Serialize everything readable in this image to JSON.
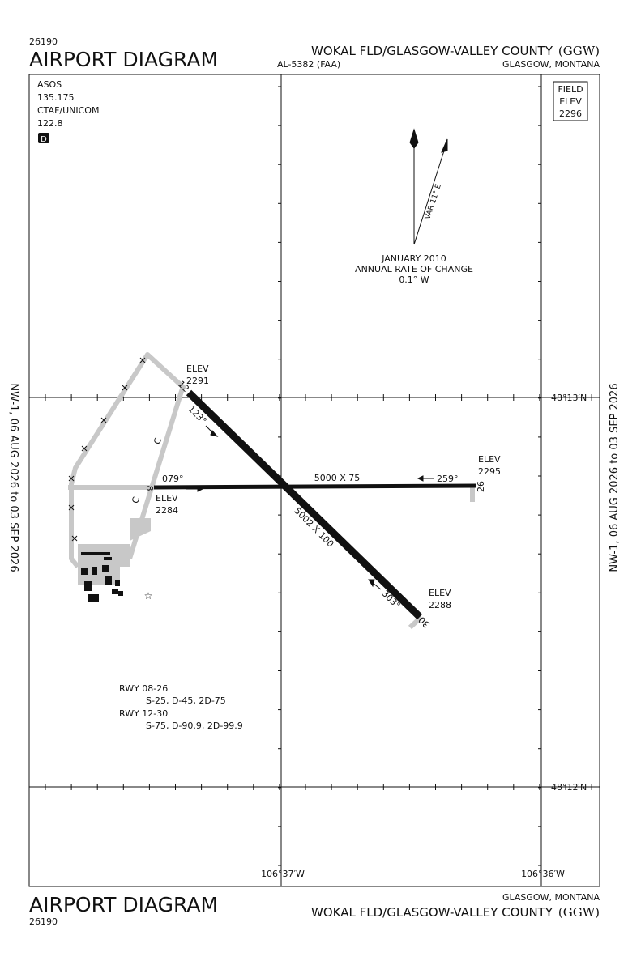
{
  "header": {
    "number": "26190",
    "title": "AIRPORT DIAGRAM",
    "airport": "WOKAL FLD/GLASGOW-VALLEY COUNTY",
    "ident": "(GGW)",
    "procedure": "AL-5382 (FAA)",
    "location": "GLASGOW, MONTANA"
  },
  "footer": {
    "title": "AIRPORT DIAGRAM",
    "number": "26190",
    "location": "GLASGOW, MONTANA",
    "airport": "WOKAL FLD/GLASGOW-VALLEY COUNTY",
    "ident": "(GGW)"
  },
  "side": {
    "left": "NW-1, 06 AUG 2026 to 03 SEP 2026",
    "right": "NW-1, 06 AUG 2026 to 03 SEP 2026"
  },
  "comms": {
    "asos": "ASOS",
    "asos_freq": "135.175",
    "ctaf": "CTAF/UNICOM",
    "ctaf_freq": "122.8",
    "badge": "D"
  },
  "field_elev": {
    "line1": "FIELD",
    "line2": "ELEV",
    "value": "2296"
  },
  "magvar": {
    "var": "VAR 11° E",
    "date": "JANUARY 2010",
    "rate_label": "ANNUAL RATE OF CHANGE",
    "rate": "0.1° W"
  },
  "grid": {
    "lat_north": "48°13′N",
    "lat_south": "48°12′N",
    "lon_west": "106°37′W",
    "lon_east": "106°36′W"
  },
  "runways": {
    "rwy12": {
      "elev_label": "ELEV",
      "elev": "2291",
      "number": "12",
      "heading": "123°"
    },
    "rwy08": {
      "heading": "079°",
      "number": "8",
      "elev_label": "ELEV",
      "elev": "2284"
    },
    "rwy26": {
      "dims": "5000 X 75",
      "heading": "259°",
      "elev_label": "ELEV",
      "elev": "2295",
      "number": "26"
    },
    "rwy30": {
      "dims": "5002 X 100",
      "heading": "303°",
      "elev_label": "ELEV",
      "elev": "2288",
      "number": "30"
    }
  },
  "taxiways": [
    "C",
    "C"
  ],
  "runway_data": {
    "rwy1": "RWY  08-26",
    "rwy1_strength": "S-25, D-45, 2D-75",
    "rwy2": "RWY  12-30",
    "rwy2_strength": "S-75, D-90.9, 2D-99.9"
  }
}
